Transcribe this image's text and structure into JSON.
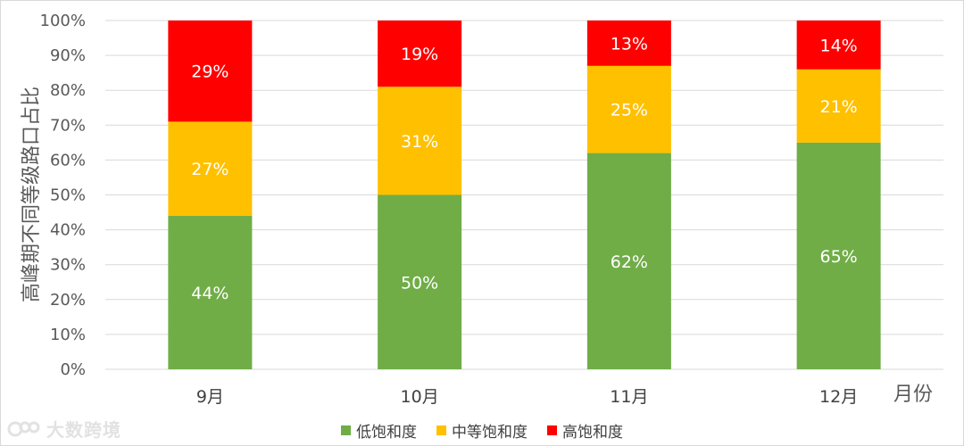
{
  "chart_data": {
    "type": "bar",
    "stacked": true,
    "percent_stacked": true,
    "categories": [
      "9月",
      "10月",
      "11月",
      "12月"
    ],
    "series": [
      {
        "name": "低饱和度",
        "color": "#70ad47",
        "values": [
          44,
          50,
          62,
          65
        ],
        "labels": [
          "44%",
          "50%",
          "62%",
          "65%"
        ]
      },
      {
        "name": "中等饱和度",
        "color": "#ffc000",
        "values": [
          27,
          31,
          25,
          21
        ],
        "labels": [
          "27%",
          "31%",
          "25%",
          "21%"
        ]
      },
      {
        "name": "高饱和度",
        "color": "#ff0000",
        "values": [
          29,
          19,
          13,
          14
        ],
        "labels": [
          "29%",
          "19%",
          "13%",
          "14%"
        ]
      }
    ],
    "ylabel": "高峰期不同等级路口占比",
    "xlabel": "月份",
    "ylim": [
      0,
      100
    ],
    "yticks": [
      "0%",
      "10%",
      "20%",
      "30%",
      "40%",
      "50%",
      "60%",
      "70%",
      "80%",
      "90%",
      "100%"
    ],
    "grid": true,
    "legend_position": "bottom"
  },
  "watermark": {
    "text": "大数跨境",
    "icon": "logo-mark"
  }
}
